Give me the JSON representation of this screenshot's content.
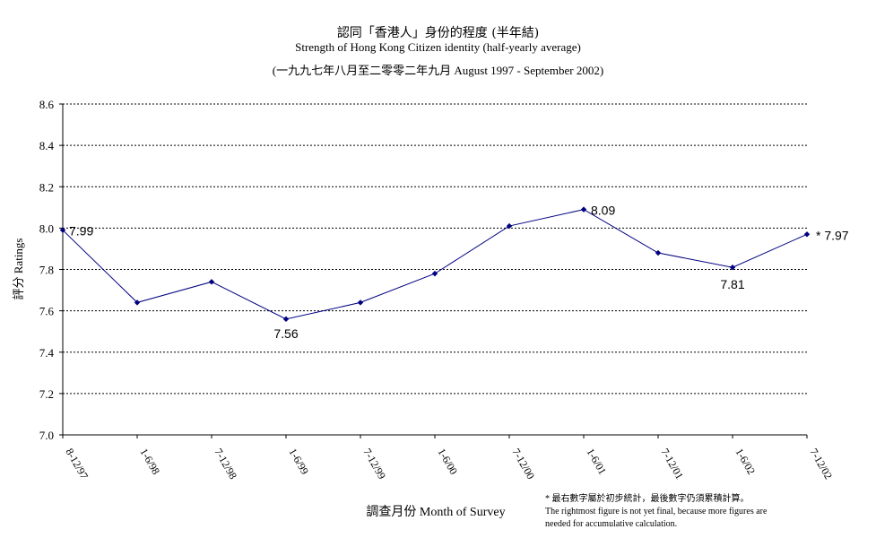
{
  "chart_data": {
    "type": "line",
    "title": "認同「香港人」身份的程度 (半年結)",
    "subtitle": "Strength of Hong Kong Citizen identity (half-yearly average)",
    "subtitle2": "(一九九七年八月至二零零二年九月 August 1997 - September 2002)",
    "ylabel": "評分 Ratings",
    "xlabel": "調查月份 Month of Survey",
    "ylim": [
      7.0,
      8.6
    ],
    "yticks": [
      "7.0",
      "7.2",
      "7.4",
      "7.6",
      "7.8",
      "8.0",
      "8.2",
      "8.4",
      "8.6"
    ],
    "grid": true,
    "categories": [
      "8-12/97",
      "1-6/98",
      "7-12/98",
      "1-6/99",
      "7-12/99",
      "1-6/00",
      "7-12/00",
      "1-6/01",
      "7-12/01",
      "1-6/02",
      "7-12/02"
    ],
    "series": [
      {
        "values": [
          7.99,
          7.64,
          7.74,
          7.56,
          7.64,
          7.78,
          8.01,
          8.09,
          7.88,
          7.81,
          7.97
        ]
      }
    ],
    "data_labels": [
      {
        "index": 0,
        "text": "7.99"
      },
      {
        "index": 3,
        "text": "7.56"
      },
      {
        "index": 7,
        "text": "8.09"
      },
      {
        "index": 9,
        "text": "7.81"
      },
      {
        "index": 10,
        "text": "* 7.97"
      }
    ],
    "line_color": "#000080"
  },
  "footnote": {
    "line1": "* 最右數字屬於初步統計，最後數字仍須累積計算。",
    "line2": "The rightmost figure is not yet final, because more figures are",
    "line3": "needed for accumulative calculation."
  }
}
